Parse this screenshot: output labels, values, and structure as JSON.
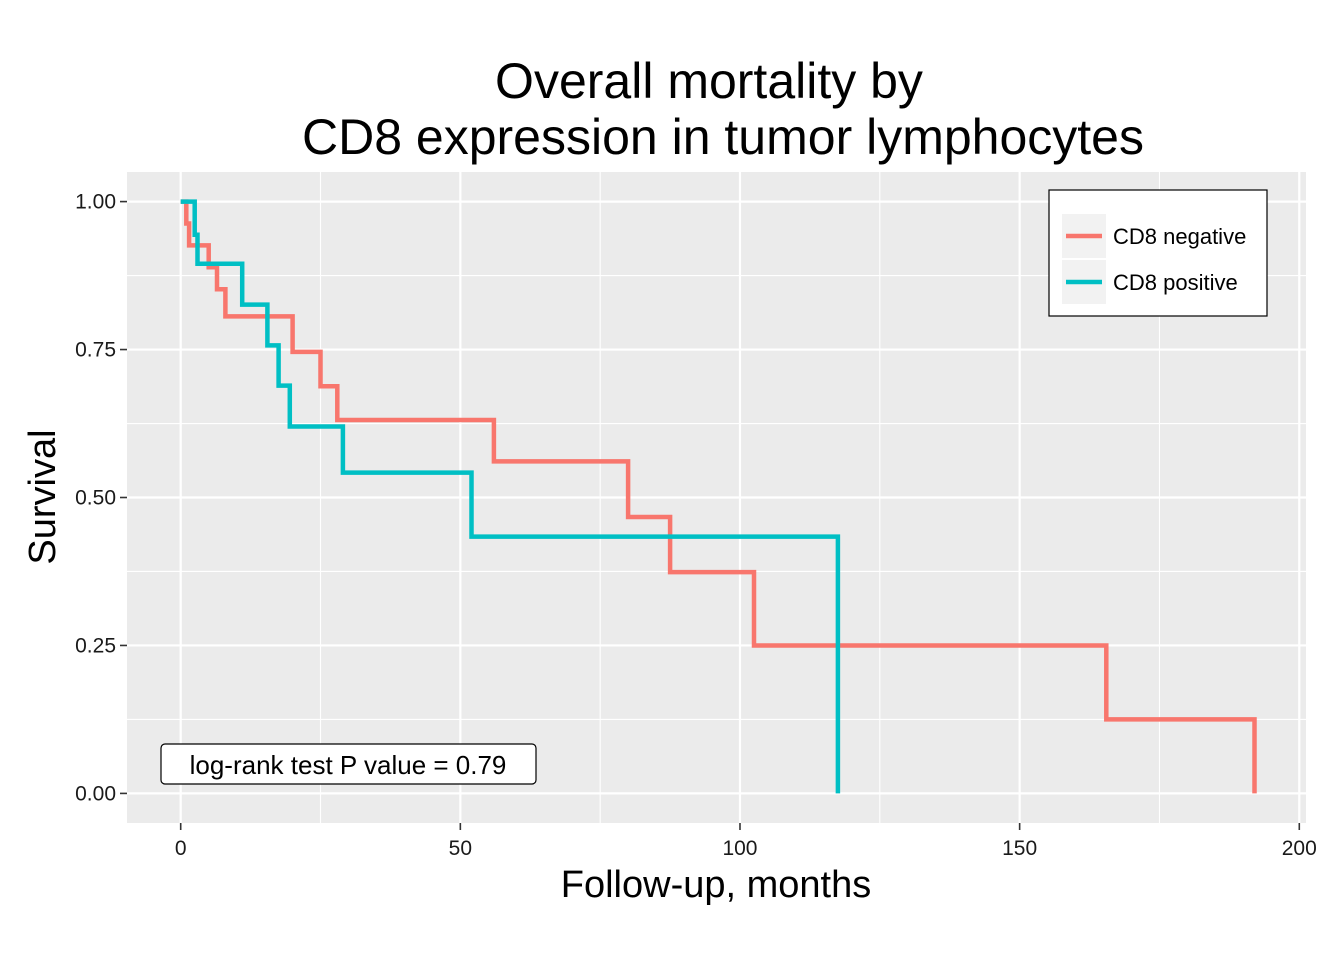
{
  "chart_data": {
    "type": "line",
    "title_lines": [
      "Overall mortality by",
      "CD8 expression in tumor lymphocytes"
    ],
    "xlabel": "Follow-up, months",
    "ylabel": "Survival",
    "xlim": [
      -9.6,
      201.2
    ],
    "ylim": [
      -0.05,
      1.05
    ],
    "x_ticks": [
      0,
      50,
      100,
      150,
      200
    ],
    "x_tick_labels": [
      "0",
      "50",
      "100",
      "150",
      "200"
    ],
    "y_ticks": [
      0,
      0.25,
      0.5,
      0.75,
      1.0
    ],
    "y_tick_labels": [
      "0.00",
      "0.25",
      "0.50",
      "0.75",
      "1.00"
    ],
    "grid": true,
    "legend_position": "top-right",
    "annotation": "log-rank test P value = 0.79",
    "series": [
      {
        "name": "CD8 negative",
        "color": "#F8766D",
        "step": true,
        "x": [
          0,
          1,
          1.5,
          2.5,
          5,
          6.5,
          8,
          20,
          25,
          28,
          56,
          80,
          87.5,
          102.5,
          165.5,
          192,
          192
        ],
        "y": [
          1.0,
          0.963,
          0.926,
          0.926,
          0.889,
          0.852,
          0.806,
          0.746,
          0.688,
          0.631,
          0.561,
          0.467,
          0.374,
          0.25,
          0.125,
          0.125,
          0.0
        ]
      },
      {
        "name": "CD8 positive",
        "color": "#00BFC4",
        "step": true,
        "x": [
          0,
          2.5,
          3,
          11,
          15.5,
          17.5,
          19.5,
          29,
          52,
          117.5,
          117.5
        ],
        "y": [
          1.0,
          0.944,
          0.895,
          0.826,
          0.757,
          0.689,
          0.62,
          0.542,
          0.434,
          0.434,
          0.0
        ]
      }
    ]
  }
}
